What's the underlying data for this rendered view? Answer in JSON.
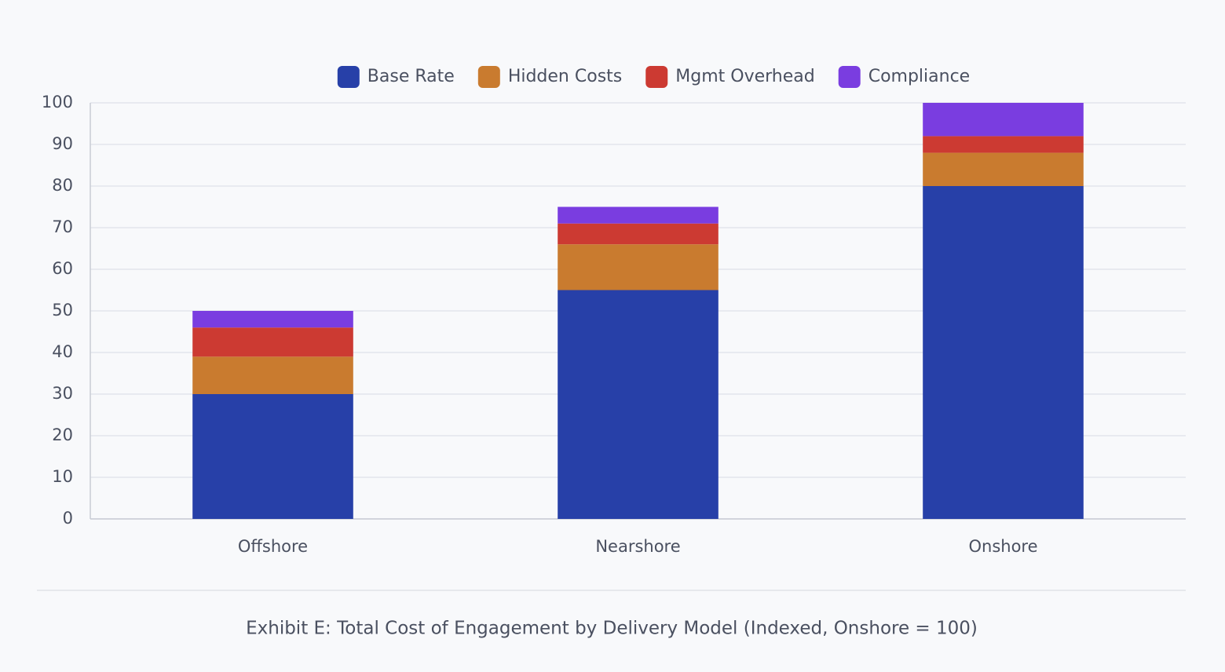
{
  "chart_data": {
    "type": "stacked_bar",
    "title": "Exhibit E: Total Cost of Engagement by Delivery Model (Indexed, Onshore = 100)",
    "categories": [
      "Offshore",
      "Nearshore",
      "Onshore"
    ],
    "series": [
      {
        "name": "Base Rate",
        "color": "#2740a8",
        "values": [
          30,
          55,
          80
        ]
      },
      {
        "name": "Hidden Costs",
        "color": "#c97b2f",
        "values": [
          9,
          11,
          8
        ]
      },
      {
        "name": "Mgmt Overhead",
        "color": "#cc3a32",
        "values": [
          7,
          5,
          4
        ]
      },
      {
        "name": "Compliance",
        "color": "#7a3de0",
        "values": [
          4,
          4,
          8
        ]
      }
    ],
    "ylim": [
      0,
      100
    ],
    "yticks": [
      0,
      10,
      20,
      30,
      40,
      50,
      60,
      70,
      80,
      90,
      100
    ],
    "grid": true,
    "legend": "top"
  }
}
